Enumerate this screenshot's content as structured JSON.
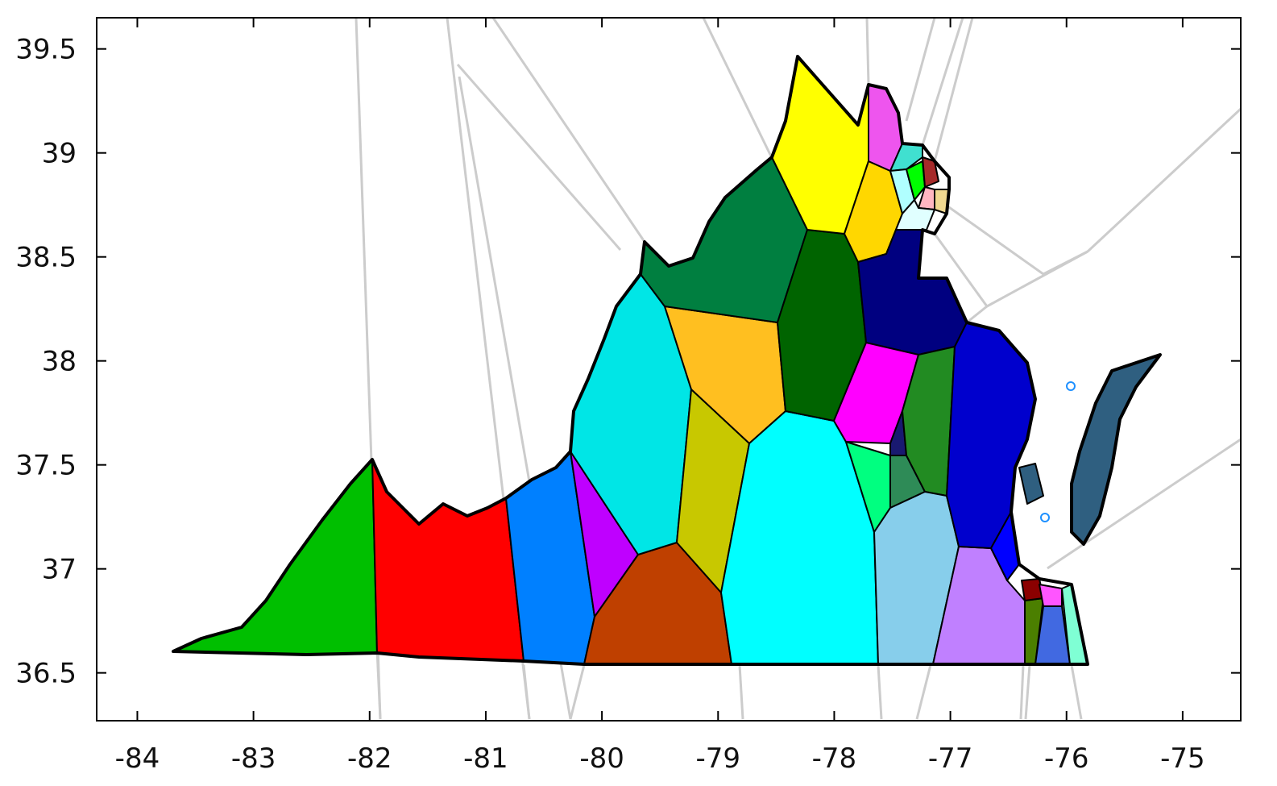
{
  "map": {
    "x_ticks": [
      "-84",
      "-83",
      "-82",
      "-81",
      "-80",
      "-79",
      "-78",
      "-77",
      "-76",
      "-75"
    ],
    "y_ticks": [
      "39.5",
      "39",
      "38.5",
      "38",
      "37.5",
      "37",
      "36.5"
    ],
    "xlim": [
      -84.35,
      -74.5
    ],
    "ylim": [
      36.27,
      39.65
    ],
    "grid": false,
    "colors": {
      "voronoi_lines": "#cccccc",
      "outline": "#000000",
      "marker": "#1e90ff"
    },
    "regions": [
      {
        "name": "green-west",
        "color": "#00bf00"
      },
      {
        "name": "red",
        "color": "#ff0000"
      },
      {
        "name": "azure-blue",
        "color": "#0080ff"
      },
      {
        "name": "purple",
        "color": "#bf00ff"
      },
      {
        "name": "rust",
        "color": "#bf4000"
      },
      {
        "name": "cyan-west",
        "color": "#00e6e6"
      },
      {
        "name": "olive",
        "color": "#c8c800"
      },
      {
        "name": "orange",
        "color": "#ffbf20"
      },
      {
        "name": "cyan-central",
        "color": "#00ffff"
      },
      {
        "name": "dark-green-north",
        "color": "#007f40"
      },
      {
        "name": "forest",
        "color": "#006400"
      },
      {
        "name": "yellow",
        "color": "#ffff00"
      },
      {
        "name": "gold",
        "color": "#ffd700"
      },
      {
        "name": "navy",
        "color": "#000080"
      },
      {
        "name": "magenta",
        "color": "#ff00ff"
      },
      {
        "name": "spring-green",
        "color": "#00ff80"
      },
      {
        "name": "sea-green",
        "color": "#2e8b57"
      },
      {
        "name": "dark-navy-small",
        "color": "#191970"
      },
      {
        "name": "forest-green",
        "color": "#228b22"
      },
      {
        "name": "sky-blue",
        "color": "#87ceeb"
      },
      {
        "name": "lavender",
        "color": "#c080ff"
      },
      {
        "name": "medium-blue",
        "color": "#0000cd"
      },
      {
        "name": "blue",
        "color": "#0000ff"
      },
      {
        "name": "slate-blue",
        "color": "#2f5f80"
      },
      {
        "name": "violet-nova",
        "color": "#ee55ee"
      },
      {
        "name": "turquoise",
        "color": "#40e0d0"
      },
      {
        "name": "light-cyan",
        "color": "#b0ffff"
      },
      {
        "name": "lime",
        "color": "#00ff00"
      },
      {
        "name": "brown",
        "color": "#a52a2a"
      },
      {
        "name": "pink",
        "color": "#ffb6c1"
      },
      {
        "name": "wheat",
        "color": "#f0d890"
      },
      {
        "name": "pale-cyan",
        "color": "#e0ffff"
      },
      {
        "name": "olive-green",
        "color": "#4b7f00"
      },
      {
        "name": "royal-blue",
        "color": "#4169e1"
      },
      {
        "name": "aquamarine",
        "color": "#7fffd4"
      },
      {
        "name": "dark-red",
        "color": "#8b0000"
      },
      {
        "name": "orchid",
        "color": "#ff55ff"
      }
    ],
    "markers": [
      {
        "lon": -76.0,
        "lat": 37.88
      },
      {
        "lon": -76.22,
        "lat": 37.25
      }
    ]
  }
}
